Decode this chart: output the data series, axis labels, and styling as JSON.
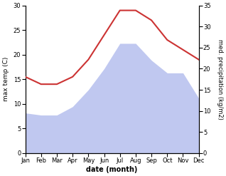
{
  "months": [
    "Jan",
    "Feb",
    "Mar",
    "Apr",
    "May",
    "Jun",
    "Jul",
    "Aug",
    "Sep",
    "Oct",
    "Nov",
    "Dec"
  ],
  "temperature": [
    15.5,
    14.0,
    14.0,
    15.5,
    19.0,
    24.0,
    29.0,
    29.0,
    27.0,
    23.0,
    21.0,
    19.0
  ],
  "precipitation": [
    9.5,
    9.0,
    9.0,
    11.0,
    15.0,
    20.0,
    26.0,
    26.0,
    22.0,
    19.0,
    19.0,
    13.0
  ],
  "temp_color": "#cc3333",
  "precip_color": "#c0c8f0",
  "temp_ylim": [
    0,
    30
  ],
  "precip_ylim": [
    0,
    35
  ],
  "temp_yticks": [
    0,
    5,
    10,
    15,
    20,
    25,
    30
  ],
  "precip_yticks": [
    0,
    5,
    10,
    15,
    20,
    25,
    30,
    35
  ],
  "ylabel_left": "max temp (C)",
  "ylabel_right": "med. precipitation (kg/m2)",
  "xlabel": "date (month)",
  "background_color": "#ffffff"
}
